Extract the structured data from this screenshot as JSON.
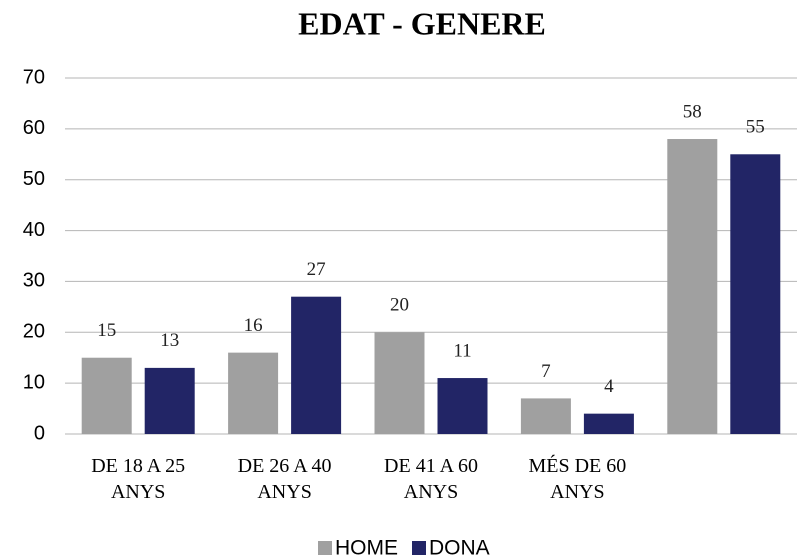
{
  "chart_data": {
    "type": "bar",
    "title": "EDAT - GENERE",
    "categories": [
      "DE 18 A 25 ANYS",
      "DE 26 A 40 ANYS",
      "DE 41 A 60 ANYS",
      "MÉS DE 60 ANYS",
      null
    ],
    "series": [
      {
        "name": "HOME",
        "color": "#a0a0a0",
        "values": [
          15,
          16,
          20,
          7,
          58
        ]
      },
      {
        "name": "DONA",
        "color": "#222566",
        "values": [
          13,
          27,
          11,
          4,
          55
        ]
      }
    ],
    "ylim": [
      0,
      70
    ],
    "yticks": [
      0,
      10,
      20,
      30,
      40,
      50,
      60,
      70
    ],
    "grid": true,
    "legend": "bottom"
  }
}
